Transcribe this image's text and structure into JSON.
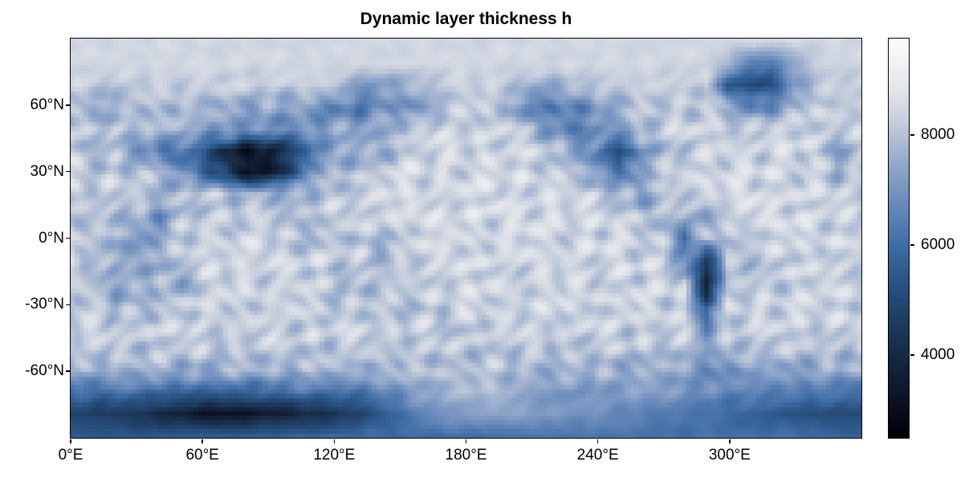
{
  "chart_data": {
    "type": "heatmap",
    "title": "Dynamic layer thickness h",
    "xlabel": "",
    "ylabel": "",
    "xlim": [
      0,
      360
    ],
    "ylim": [
      -90,
      90
    ],
    "grid_lines": "off",
    "x_ticks": {
      "values": [
        0,
        60,
        120,
        180,
        240,
        300
      ],
      "labels": [
        "0°E",
        "60°E",
        "120°E",
        "180°E",
        "240°E",
        "300°E"
      ]
    },
    "y_ticks": {
      "values": [
        60,
        30,
        0,
        -30,
        -60
      ],
      "labels": [
        "60°N",
        "30°N",
        "0°N",
        "-30°N",
        "-60°N"
      ]
    },
    "colorbar": {
      "vmin": 2500,
      "vmax": 9750,
      "ticks": [
        4000,
        6000,
        8000
      ],
      "tick_labels": [
        "4000",
        "6000",
        "8000"
      ],
      "position": "right"
    },
    "colormap": [
      [
        0.0,
        "#010104"
      ],
      [
        0.06,
        "#070c18"
      ],
      [
        0.13,
        "#0e1a30"
      ],
      [
        0.21,
        "#172a45"
      ],
      [
        0.3,
        "#1f3d63"
      ],
      [
        0.4,
        "#2c5587"
      ],
      [
        0.48,
        "#3e6ca5"
      ],
      [
        0.56,
        "#5f83b5"
      ],
      [
        0.64,
        "#7f9ac4"
      ],
      [
        0.72,
        "#a3b4d0"
      ],
      [
        0.79,
        "#c6cedc"
      ],
      [
        0.86,
        "#dfe2e8"
      ],
      [
        0.93,
        "#eef0f3"
      ],
      [
        1.0,
        "#fbfbfc"
      ]
    ],
    "texture": {
      "amplitude": 820
    },
    "grid": {
      "lon_start": 0,
      "lon_step": 10,
      "lat_start": 90,
      "lat_step": -10,
      "values": [
        [
          8450,
          8450,
          8450,
          8450,
          8450,
          8450,
          8450,
          8450,
          8450,
          8450,
          8450,
          8450,
          8450,
          8450,
          8450,
          8450,
          8450,
          8450,
          8450,
          8450,
          8450,
          8450,
          8450,
          8450,
          8450,
          8450,
          8450,
          8450,
          8450,
          8450,
          8450,
          8450,
          8450,
          8450,
          8450,
          8450,
          8450
        ],
        [
          8450,
          8450,
          8450,
          8450,
          8450,
          8450,
          8450,
          8450,
          8450,
          8450,
          8450,
          8450,
          8450,
          8450,
          8450,
          8450,
          8450,
          8450,
          8450,
          8450,
          8450,
          8450,
          8450,
          8450,
          8450,
          8450,
          8450,
          8450,
          8450,
          8450,
          7800,
          6600,
          6400,
          7400,
          8200,
          8450,
          8450
        ],
        [
          8250,
          8250,
          7900,
          8150,
          8250,
          8250,
          8250,
          8250,
          8250,
          8250,
          8250,
          8250,
          8250,
          7300,
          7100,
          7400,
          7900,
          8250,
          8250,
          8250,
          8150,
          7700,
          7500,
          7900,
          8150,
          8250,
          8250,
          8250,
          8250,
          8250,
          5600,
          5000,
          5400,
          7000,
          7900,
          8150,
          8250
        ],
        [
          8150,
          7400,
          7500,
          7900,
          8000,
          7900,
          7600,
          7500,
          7400,
          7400,
          7200,
          7000,
          6700,
          6300,
          6600,
          7000,
          7100,
          7800,
          8100,
          8100,
          7600,
          6400,
          6200,
          6700,
          7200,
          7500,
          7800,
          8000,
          8000,
          8100,
          7400,
          6600,
          6800,
          7600,
          8100,
          8200,
          8150
        ],
        [
          8100,
          7900,
          8000,
          8000,
          7800,
          7700,
          7500,
          7300,
          7000,
          6800,
          6900,
          7100,
          7200,
          7300,
          7500,
          7900,
          8100,
          8300,
          8300,
          8300,
          8200,
          7600,
          6900,
          6500,
          6600,
          7300,
          7900,
          8200,
          8300,
          8300,
          8200,
          8100,
          8200,
          8300,
          8300,
          8200,
          8100
        ],
        [
          8100,
          7600,
          7700,
          7000,
          6300,
          6000,
          5400,
          4200,
          3400,
          3400,
          4600,
          6400,
          7300,
          7400,
          7300,
          8100,
          8300,
          8400,
          8400,
          8400,
          8400,
          8300,
          8000,
          7400,
          6600,
          4900,
          6900,
          7900,
          7800,
          8300,
          8400,
          8400,
          8400,
          8400,
          8300,
          7400,
          7900
        ],
        [
          8200,
          8100,
          8100,
          7900,
          7600,
          6900,
          5900,
          4500,
          3000,
          3500,
          5200,
          7000,
          7600,
          7900,
          8200,
          8400,
          8400,
          8400,
          8400,
          8400,
          8400,
          8400,
          8200,
          7800,
          7000,
          6400,
          7300,
          8100,
          8400,
          8500,
          8500,
          8400,
          8400,
          8400,
          8400,
          7600,
          8000
        ],
        [
          8200,
          8200,
          8200,
          8100,
          7700,
          8000,
          8200,
          7700,
          7800,
          7900,
          7600,
          7800,
          8100,
          8300,
          8400,
          8450,
          8450,
          8450,
          8450,
          8450,
          8450,
          8450,
          8400,
          8300,
          8200,
          7800,
          7100,
          7900,
          8300,
          8400,
          8450,
          8450,
          8450,
          8400,
          8300,
          8300,
          8200
        ],
        [
          8000,
          8000,
          7900,
          7700,
          6900,
          7900,
          8200,
          8100,
          8100,
          8200,
          7800,
          8000,
          8200,
          8300,
          8400,
          8450,
          8450,
          8450,
          8450,
          8450,
          8450,
          8450,
          8450,
          8400,
          8300,
          8200,
          8000,
          7600,
          7700,
          7200,
          8200,
          8400,
          8450,
          8450,
          8400,
          8200,
          8000
        ],
        [
          8300,
          7800,
          7700,
          7100,
          7500,
          8100,
          8300,
          8400,
          8400,
          8300,
          7900,
          8000,
          7900,
          8000,
          7800,
          8200,
          8400,
          8450,
          8450,
          8450,
          8450,
          8450,
          8450,
          8450,
          8400,
          8400,
          8300,
          8200,
          6200,
          7900,
          8100,
          8100,
          8300,
          8400,
          8400,
          8400,
          8300
        ],
        [
          8300,
          7700,
          7500,
          7300,
          7600,
          8000,
          8300,
          8400,
          8400,
          8400,
          8200,
          8300,
          8200,
          8100,
          7600,
          8100,
          8300,
          8400,
          8400,
          8400,
          8400,
          8400,
          8400,
          8400,
          8400,
          8400,
          8300,
          8300,
          6800,
          4600,
          7900,
          8000,
          8200,
          8300,
          8300,
          8300,
          8300
        ],
        [
          8300,
          7900,
          7400,
          7400,
          7800,
          7300,
          8100,
          8300,
          8350,
          8350,
          8300,
          8200,
          7900,
          7900,
          8000,
          8100,
          8300,
          8350,
          8350,
          8350,
          8350,
          8350,
          8350,
          8350,
          8350,
          8350,
          8300,
          8300,
          8200,
          3800,
          7800,
          8000,
          8100,
          8300,
          8300,
          8300,
          8300
        ],
        [
          8300,
          8200,
          7500,
          7600,
          8000,
          8200,
          8300,
          8300,
          8300,
          8300,
          8300,
          8200,
          8000,
          8000,
          7900,
          7800,
          8100,
          8300,
          8300,
          8300,
          8300,
          8300,
          8300,
          8300,
          8300,
          8300,
          8300,
          8300,
          8300,
          5200,
          8100,
          8300,
          8300,
          8300,
          8300,
          8300,
          8300
        ],
        [
          8250,
          8250,
          8250,
          8250,
          8250,
          8250,
          8250,
          8250,
          8250,
          8250,
          8250,
          8250,
          8250,
          8250,
          8250,
          8250,
          8250,
          7700,
          8250,
          8250,
          8250,
          8250,
          8250,
          8250,
          8250,
          8250,
          8250,
          8250,
          8250,
          6700,
          8200,
          8250,
          8250,
          8250,
          8250,
          8250,
          8250
        ],
        [
          8050,
          8050,
          8050,
          8050,
          8050,
          8050,
          8050,
          8050,
          8050,
          8050,
          8050,
          8050,
          8050,
          8050,
          8050,
          8050,
          8050,
          8050,
          8050,
          8050,
          8050,
          8050,
          8050,
          8050,
          8050,
          8050,
          8050,
          8050,
          8050,
          7200,
          8000,
          8050,
          8050,
          8050,
          8050,
          8050,
          8050
        ],
        [
          7500,
          7600,
          7700,
          7600,
          7600,
          7500,
          7500,
          7600,
          7600,
          7600,
          7700,
          7700,
          7700,
          7700,
          7800,
          7800,
          7900,
          7900,
          7900,
          7900,
          7800,
          7800,
          7700,
          7700,
          7700,
          7600,
          7500,
          7500,
          7300,
          6900,
          7000,
          7200,
          7400,
          7400,
          7500,
          7500,
          7500
        ],
        [
          6100,
          6000,
          6200,
          6100,
          5900,
          6000,
          5700,
          5800,
          5900,
          6000,
          6100,
          6200,
          6100,
          6300,
          6500,
          6900,
          7400,
          7700,
          7800,
          7800,
          7700,
          7300,
          7000,
          7000,
          7100,
          7200,
          7300,
          7200,
          7000,
          6800,
          6600,
          6500,
          6600,
          6400,
          6300,
          6200,
          6100
        ],
        [
          4900,
          4700,
          4600,
          4400,
          4000,
          3700,
          3300,
          3200,
          3300,
          3600,
          3800,
          4100,
          4300,
          4800,
          5400,
          6000,
          6600,
          7000,
          7200,
          7300,
          7300,
          7200,
          7100,
          7000,
          6900,
          6700,
          6500,
          6300,
          6200,
          6100,
          5900,
          5700,
          5500,
          5300,
          5200,
          5100,
          5000
        ],
        [
          5500,
          5500,
          5400,
          5400,
          5400,
          5500,
          5500,
          5600,
          5600,
          5700,
          5700,
          5800,
          5800,
          5900,
          5900,
          6000,
          6000,
          6100,
          6100,
          6100,
          6200,
          6200,
          6200,
          6200,
          6200,
          6200,
          6200,
          6100,
          6100,
          6100,
          6100,
          6000,
          6000,
          6000,
          5900,
          5800,
          5700
        ]
      ]
    }
  }
}
